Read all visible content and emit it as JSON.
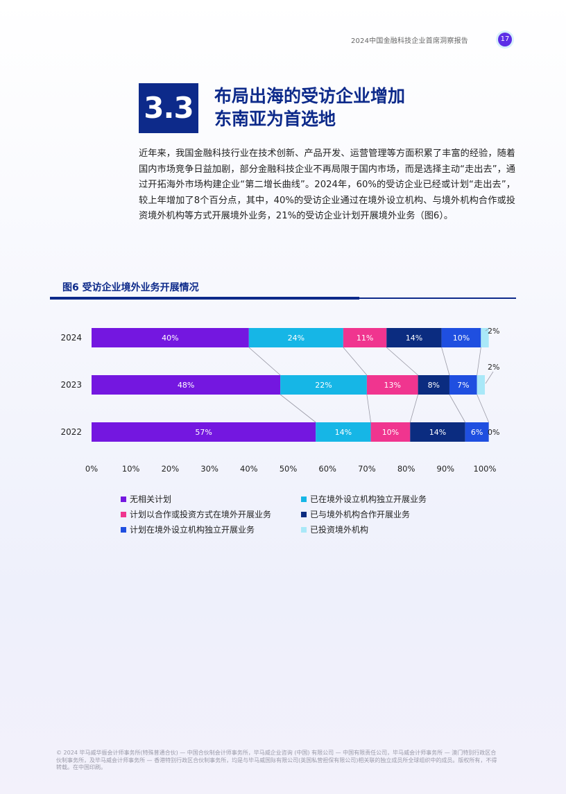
{
  "header": {
    "title": "2024中国金融科技企业首席洞察报告",
    "page_number": "17"
  },
  "section": {
    "number": "3.3",
    "title_line1": "布局出海的受访企业增加",
    "title_line2": "东南亚为首选地"
  },
  "body_text": "近年来，我国金融科技行业在技术创新、产品开发、运营管理等方面积累了丰富的经验，随着国内市场竞争日益加剧，部分金融科技企业不再局限于国内市场，而是选择主动“走出去”，通过开拓海外市场构建企业“第二增长曲线”。2024年，60%的受访企业已经或计划“走出去”，较上年增加了8个百分点，其中，40%的受访企业通过在境外设立机构、与境外机构合作或投资境外机构等方式开展境外业务，21%的受访企业计划开展境外业务（图6）。",
  "figure": {
    "title": "图6 受访企业境外业务开展情况"
  },
  "chart_data": {
    "type": "bar",
    "orientation": "horizontal",
    "stacked": true,
    "categories": [
      "2024",
      "2023",
      "2022"
    ],
    "series": [
      {
        "name": "无相关计划",
        "color": "#7417e0",
        "values": [
          40,
          48,
          57
        ]
      },
      {
        "name": "已在境外设立机构独立开展业务",
        "color": "#16b6e6",
        "values": [
          24,
          22,
          14
        ]
      },
      {
        "name": "计划以合作或投资方式在境外开展业务",
        "color": "#f0358f",
        "values": [
          11,
          13,
          10
        ]
      },
      {
        "name": "已与境外机构合作开展业务",
        "color": "#0b2c80",
        "values": [
          14,
          8,
          14
        ]
      },
      {
        "name": "计划在境外设立机构独立开展业务",
        "color": "#1f4fe0",
        "values": [
          10,
          7,
          6
        ]
      },
      {
        "name": "已投资境外机构",
        "color": "#a9e8f8",
        "values": [
          2,
          2,
          0
        ]
      }
    ],
    "xlim": [
      0,
      100
    ],
    "x_ticks": [
      "0%",
      "10%",
      "20%",
      "30%",
      "40%",
      "50%",
      "60%",
      "70%",
      "80%",
      "90%",
      "100%"
    ],
    "value_suffix": "%",
    "legend_position": "bottom",
    "connector_lines": true
  },
  "footer": {
    "text": "© 2024 毕马威华振会计师事务所(特殊普通合伙) — 中国合伙制会计师事务所，毕马威企业咨询 (中国) 有限公司 — 中国有限责任公司，毕马威会计师事务所 — 澳门特别行政区合伙制事务所，及毕马威会计师事务所 — 香港特别行政区合伙制事务所，均是与毕马威国际有限公司(英国私营担保有限公司)相关联的独立成员所全球组织中的成员。版权所有，不得转载。在中国印刷。"
  }
}
